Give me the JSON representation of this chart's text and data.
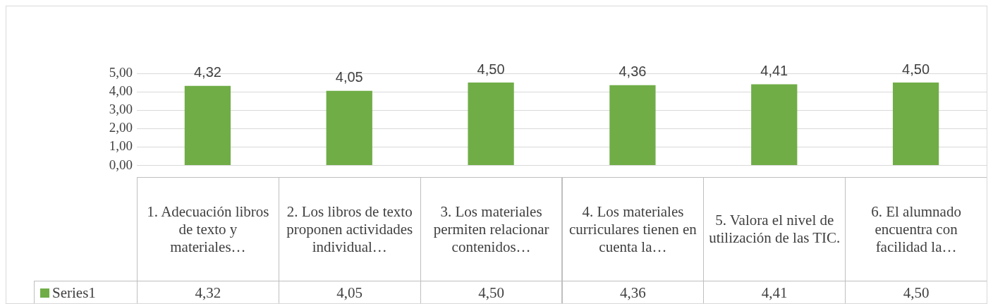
{
  "chart_data": {
    "type": "bar",
    "categories": [
      "1. Adecuación libros de texto y materiales…",
      "2. Los libros de texto proponen actividades individual…",
      "3. Los materiales permiten relacionar contenidos…",
      "4. Los materiales curriculares tienen en cuenta la…",
      "5. Valora el nivel de utilización de las TIC.",
      "6. El alumnado encuentra con facilidad la…"
    ],
    "series": [
      {
        "name": "Series1",
        "color": "#70ad47",
        "values": [
          4.32,
          4.05,
          4.5,
          4.36,
          4.41,
          4.5
        ],
        "value_labels": [
          "4,32",
          "4,05",
          "4,50",
          "4,36",
          "4,41",
          "4,50"
        ]
      }
    ],
    "ylim": [
      0,
      5
    ],
    "yticks": [
      {
        "value": 0,
        "label": "0,00"
      },
      {
        "value": 1,
        "label": "1,00"
      },
      {
        "value": 2,
        "label": "2,00"
      },
      {
        "value": 3,
        "label": "3,00"
      },
      {
        "value": 4,
        "label": "4,00"
      },
      {
        "value": 5,
        "label": "5,00"
      }
    ],
    "grid": "y"
  }
}
